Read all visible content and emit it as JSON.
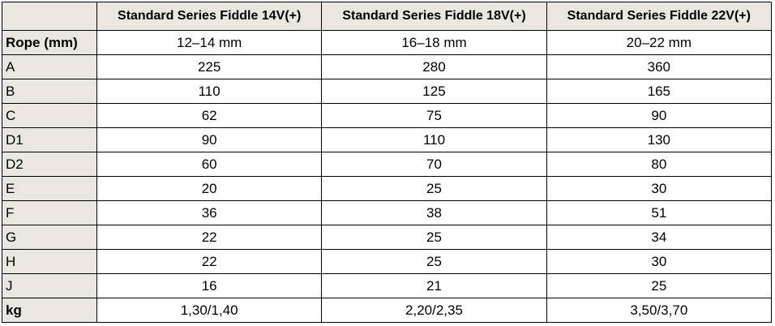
{
  "table": {
    "header": [
      "Standard Series Fiddle 14V(+)",
      "Standard Series Fiddle 18V(+)",
      "Standard Series Fiddle 22V(+)"
    ],
    "rows": [
      [
        "Rope (mm)",
        "12–14 mm",
        "16–18 mm",
        "20–22 mm"
      ],
      [
        "A",
        225,
        280,
        360
      ],
      [
        "B",
        110,
        125,
        165
      ],
      [
        "C",
        62,
        75,
        90
      ],
      [
        "D1",
        90,
        110,
        130
      ],
      [
        "D2",
        60,
        70,
        80
      ],
      [
        "E",
        20,
        25,
        30
      ],
      [
        "F",
        36,
        38,
        51
      ],
      [
        "G",
        22,
        25,
        34
      ],
      [
        "H",
        22,
        25,
        30
      ],
      [
        "J",
        16,
        21,
        25
      ],
      [
        "kg",
        "1,30/1,40",
        "2,20/2,35",
        "3,50/3,70"
      ]
    ]
  }
}
